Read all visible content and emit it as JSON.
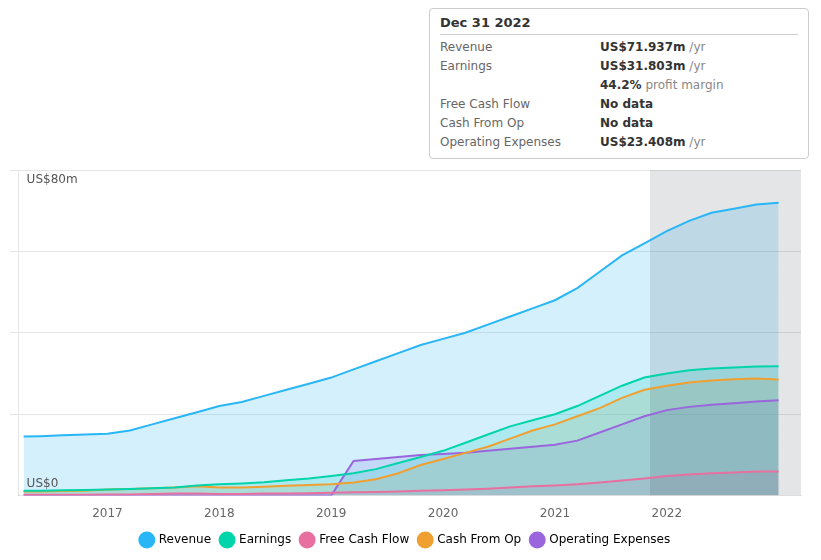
{
  "chart_data": {
    "type": "area",
    "title": "Dec 31 2022",
    "info_rows": [
      {
        "label": "Revenue",
        "value": "US$71.937m",
        "suffix": " /yr"
      },
      {
        "label": "Earnings",
        "value": "US$31.803m",
        "suffix": " /yr"
      },
      {
        "value": "44.2%",
        "suffix": " profit margin"
      },
      {
        "label": "Free Cash Flow",
        "value": "No data"
      },
      {
        "label": "Cash From Op",
        "value": "No data"
      },
      {
        "label": "Operating Expenses",
        "value": "US$23.408m",
        "suffix": " /yr"
      }
    ],
    "annotations": [
      {
        "text": "US$80m",
        "x": 2016.25,
        "y": 79
      },
      {
        "text": "US$0",
        "x": 2016.25,
        "y": 1.5
      }
    ],
    "bands": [
      {
        "from": 2021.85,
        "to": 2023.2,
        "color": "#1e2a3a"
      }
    ],
    "x": [
      2016.25,
      2016.4,
      2016.6,
      2016.8,
      2017.0,
      2017.2,
      2017.4,
      2017.6,
      2017.8,
      2018.0,
      2018.2,
      2018.4,
      2018.6,
      2018.8,
      2019.0,
      2019.2,
      2019.4,
      2019.6,
      2019.8,
      2020.0,
      2020.2,
      2020.4,
      2020.6,
      2020.8,
      2021.0,
      2021.2,
      2021.4,
      2021.6,
      2021.8,
      2022.0,
      2022.2,
      2022.4,
      2022.6,
      2022.8,
      2023.0
    ],
    "series": [
      {
        "name": "Revenue",
        "color": "#29b6f6",
        "values": [
          14.5,
          14.6,
          14.8,
          15.0,
          15.2,
          16.0,
          17.5,
          19.0,
          20.5,
          22.0,
          23.0,
          24.5,
          26.0,
          27.5,
          29.0,
          31.0,
          33.0,
          35.0,
          37.0,
          38.5,
          40.0,
          42.0,
          44.0,
          46.0,
          48.0,
          51.0,
          55.0,
          59.0,
          62.0,
          65.0,
          67.5,
          69.5,
          70.5,
          71.5,
          71.937
        ]
      },
      {
        "name": "Earnings",
        "color": "#00d4aa",
        "values": [
          1.2,
          1.2,
          1.3,
          1.4,
          1.5,
          1.6,
          1.8,
          2.0,
          2.5,
          2.8,
          3.0,
          3.3,
          3.8,
          4.2,
          4.8,
          5.5,
          6.5,
          8.0,
          9.5,
          11.0,
          13.0,
          15.0,
          17.0,
          18.5,
          20.0,
          22.0,
          24.5,
          27.0,
          29.0,
          30.0,
          30.8,
          31.2,
          31.5,
          31.7,
          31.803
        ]
      },
      {
        "name": "Free Cash Flow",
        "color": "#e870a0",
        "values": [
          0.2,
          0.2,
          0.2,
          0.2,
          0.3,
          0.3,
          0.4,
          0.5,
          0.5,
          0.4,
          0.4,
          0.5,
          0.5,
          0.6,
          0.7,
          0.8,
          0.9,
          1.0,
          1.2,
          1.3,
          1.5,
          1.7,
          2.0,
          2.3,
          2.5,
          2.8,
          3.2,
          3.7,
          4.2,
          4.8,
          5.2,
          5.5,
          5.7,
          5.9,
          5.9
        ]
      },
      {
        "name": "Cash From Op",
        "color": "#f0a030",
        "values": [
          1.0,
          1.0,
          1.1,
          1.2,
          1.5,
          1.6,
          1.8,
          2.0,
          2.3,
          2.0,
          2.0,
          2.2,
          2.4,
          2.6,
          2.8,
          3.2,
          4.0,
          5.5,
          7.5,
          9.0,
          10.5,
          12.0,
          14.0,
          16.0,
          17.5,
          19.5,
          21.5,
          24.0,
          26.0,
          27.0,
          27.8,
          28.3,
          28.6,
          28.8,
          28.5
        ]
      },
      {
        "name": "Operating Expenses",
        "color": "#9966dd",
        "values": [
          0.0,
          0.0,
          0.0,
          0.0,
          0.0,
          0.0,
          0.0,
          0.0,
          0.0,
          0.0,
          0.0,
          0.0,
          0.0,
          0.0,
          0.0,
          8.5,
          9.0,
          9.5,
          10.0,
          10.2,
          10.5,
          11.0,
          11.5,
          12.0,
          12.5,
          13.5,
          15.5,
          17.5,
          19.5,
          21.0,
          21.8,
          22.3,
          22.7,
          23.1,
          23.408
        ]
      }
    ],
    "xlim": [
      2016.2,
      2023.2
    ],
    "xticks": [
      2017,
      2018,
      2019,
      2020,
      2021,
      2022
    ],
    "ylim": [
      0,
      80
    ],
    "yticks": [
      20,
      40,
      60,
      80
    ],
    "grid": true,
    "tick_labels": "x",
    "legend": "bottom"
  }
}
